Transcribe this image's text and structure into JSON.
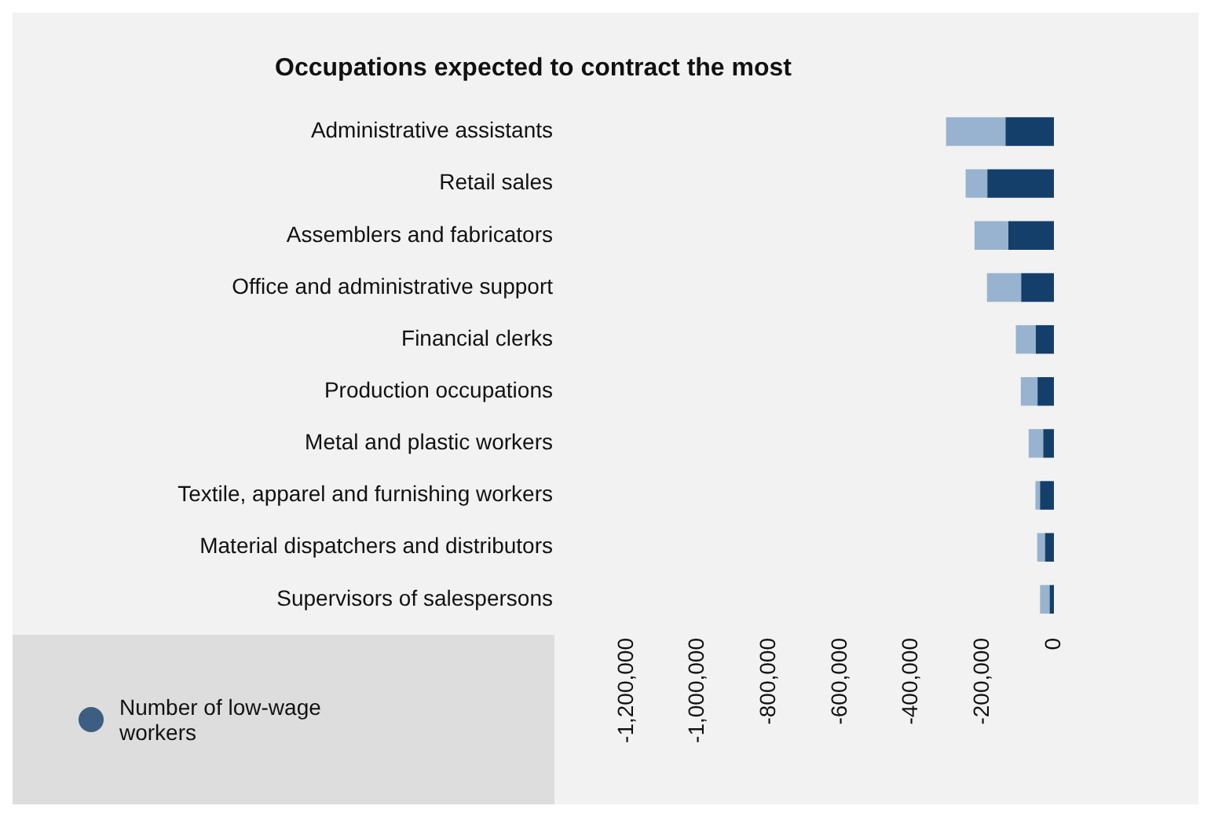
{
  "chart_data": {
    "type": "bar",
    "orientation": "horizontal",
    "stacked": true,
    "title": "Occupations expected to contract the most",
    "categories": [
      "Administrative assistants",
      "Retail sales",
      "Assemblers and fabricators",
      "Office and administrative support",
      "Financial clerks",
      "Production occupations",
      "Metal and plastic workers",
      "Textile, apparel and furnishing workers",
      "Material dispatchers and distributors",
      "Supervisors of salespersons"
    ],
    "series": [
      {
        "name": "Number of low-wage workers",
        "color": "#143f6b",
        "values": [
          -136000,
          -187000,
          -128000,
          -92000,
          -51000,
          -46000,
          -30000,
          -39000,
          -25000,
          -12000
        ]
      },
      {
        "color": "#98b3cf",
        "values": [
          -167000,
          -61000,
          -95000,
          -96000,
          -56000,
          -47000,
          -41000,
          -13000,
          -22000,
          -27000
        ]
      }
    ],
    "xlim": [
      -1200000,
      0
    ],
    "xticks": [
      {
        "value": -1200000,
        "label": "-1,200,000"
      },
      {
        "value": -1000000,
        "label": "-1,000,000"
      },
      {
        "value": -800000,
        "label": "-800,000"
      },
      {
        "value": -600000,
        "label": "-600,000"
      },
      {
        "value": -400000,
        "label": "-400,000"
      },
      {
        "value": -200000,
        "label": "-200,000"
      },
      0
    ],
    "grid": false,
    "legend": "bottom left"
  }
}
